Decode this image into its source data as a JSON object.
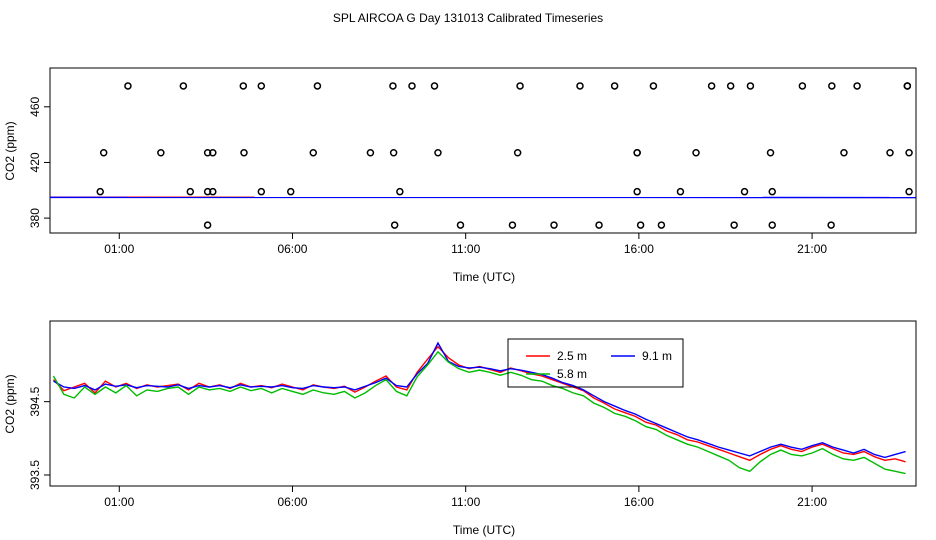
{
  "title": "SPL AIRCOA G  Day 131013  Calibrated Timeseries",
  "chart_data": [
    {
      "type": "scatter",
      "xlabel": "Time (UTC)",
      "ylabel": "CO2 (ppm)",
      "xlim_hours": [
        -1.0,
        24.0
      ],
      "ylim": [
        369.3,
        487.9
      ],
      "x_ticks": [
        {
          "label": "01:00",
          "hour": 1
        },
        {
          "label": "06:00",
          "hour": 6
        },
        {
          "label": "11:00",
          "hour": 11
        },
        {
          "label": "16:00",
          "hour": 16
        },
        {
          "label": "21:00",
          "hour": 21
        }
      ],
      "y_ticks": [
        380,
        420,
        460
      ],
      "series": [
        {
          "kind": "points",
          "color": "#000000",
          "x_hours": [
            1.25,
            2.85,
            4.58,
            5.1,
            6.72,
            8.9,
            9.45,
            10.1,
            12.57,
            14.3,
            15.3,
            16.42,
            18.1,
            18.65,
            19.22,
            20.72,
            21.57,
            22.3,
            23.75,
            23.75,
            0.55,
            2.2,
            3.55,
            3.7,
            3.7,
            5.1,
            6.6,
            8.92,
            9.1,
            10.2,
            12.5,
            15.95,
            15.95,
            15.95,
            17.2,
            17.65,
            19.05,
            19.8,
            19.85,
            21.92,
            23.25,
            23.8,
            23.8,
            0.45,
            3.05,
            3.55,
            3.55,
            4.6,
            5.95,
            8.25,
            8.95,
            10.85,
            12.35,
            13.55,
            14.85,
            16.05,
            16.65,
            18.75,
            19.85,
            21.55
          ],
          "y": [
            475,
            475,
            475,
            475,
            475,
            475,
            475,
            475,
            475,
            475,
            475,
            475,
            475,
            475,
            475,
            475,
            475,
            475,
            475,
            475,
            427,
            427,
            427,
            427,
            399,
            399,
            427,
            427,
            399,
            427,
            427,
            427,
            399,
            427,
            399,
            427,
            399,
            427,
            399,
            427,
            427,
            427,
            399,
            399,
            399,
            375,
            399,
            427,
            399,
            427,
            375,
            375,
            375,
            375,
            375,
            375,
            375,
            375,
            375,
            375
          ]
        },
        {
          "kind": "line",
          "color": "#00bb00",
          "x_hours": [
            -1.0,
            24.0
          ],
          "y": [
            395.0,
            394.9
          ]
        },
        {
          "kind": "line",
          "color": "#ff0000",
          "x_hours": [
            -1.0,
            24.0
          ],
          "y": [
            395.0,
            394.9
          ]
        },
        {
          "kind": "line",
          "color": "#0000ff",
          "x_hours": [
            -1.0,
            24.0
          ],
          "y": [
            394.9,
            394.8
          ]
        }
      ]
    },
    {
      "type": "line",
      "xlabel": "Time (UTC)",
      "ylabel": "CO2 (ppm)",
      "xlim_hours": [
        -1.0,
        24.0
      ],
      "ylim": [
        393.35,
        395.6
      ],
      "x_ticks": [
        {
          "label": "01:00",
          "hour": 1
        },
        {
          "label": "06:00",
          "hour": 6
        },
        {
          "label": "11:00",
          "hour": 11
        },
        {
          "label": "16:00",
          "hour": 16
        },
        {
          "label": "21:00",
          "hour": 21
        }
      ],
      "y_ticks": [
        {
          "label": "393.5",
          "value": 393.5
        },
        {
          "label": "394.5",
          "value": 394.5
        }
      ],
      "legend": {
        "position": "center-top",
        "entries": [
          {
            "name": "2.5 m",
            "color": "#ff0000"
          },
          {
            "name": "9.1 m",
            "color": "#0000ff"
          },
          {
            "name": "5.8 m",
            "color": "#00bb00"
          }
        ]
      },
      "x_hours": [
        -0.9,
        -0.6,
        -0.3,
        0.0,
        0.3,
        0.6,
        0.9,
        1.2,
        1.5,
        1.8,
        2.1,
        2.4,
        2.7,
        3.0,
        3.3,
        3.6,
        3.9,
        4.2,
        4.5,
        4.8,
        5.1,
        5.4,
        5.7,
        6.0,
        6.3,
        6.6,
        6.9,
        7.2,
        7.5,
        7.8,
        8.1,
        8.4,
        8.7,
        9.0,
        9.3,
        9.6,
        9.9,
        10.2,
        10.5,
        10.8,
        11.1,
        11.4,
        11.7,
        12.0,
        12.3,
        12.6,
        12.9,
        13.2,
        13.5,
        13.8,
        14.1,
        14.4,
        14.7,
        15.0,
        15.3,
        15.6,
        15.9,
        16.2,
        16.5,
        16.8,
        17.1,
        17.4,
        17.7,
        18.0,
        18.3,
        18.6,
        18.9,
        19.2,
        19.5,
        19.8,
        20.1,
        20.4,
        20.7,
        21.0,
        21.3,
        21.6,
        21.9,
        22.2,
        22.5,
        22.8,
        23.1,
        23.4,
        23.7
      ],
      "series": [
        {
          "name": "2.5 m",
          "color": "#ff0000",
          "values": [
            394.8,
            394.65,
            394.7,
            394.75,
            394.62,
            394.78,
            394.7,
            394.75,
            394.68,
            394.73,
            394.7,
            394.72,
            394.74,
            394.66,
            394.75,
            394.7,
            394.73,
            394.68,
            394.75,
            394.7,
            394.72,
            394.69,
            394.74,
            394.7,
            394.66,
            394.73,
            394.7,
            394.68,
            394.71,
            394.63,
            394.7,
            394.78,
            394.85,
            394.7,
            394.66,
            394.9,
            395.08,
            395.25,
            395.1,
            395.0,
            394.95,
            394.98,
            394.94,
            394.9,
            394.96,
            394.92,
            394.88,
            394.85,
            394.8,
            394.75,
            394.7,
            394.65,
            394.55,
            394.48,
            394.4,
            394.35,
            394.3,
            394.22,
            394.18,
            394.1,
            394.05,
            393.98,
            393.95,
            393.9,
            393.85,
            393.8,
            393.75,
            393.7,
            393.78,
            393.85,
            393.9,
            393.85,
            393.82,
            393.88,
            393.92,
            393.86,
            393.8,
            393.78,
            393.82,
            393.75,
            393.7,
            393.72,
            393.68
          ]
        },
        {
          "name": "9.1 m",
          "color": "#0000ff",
          "values": [
            394.78,
            394.7,
            394.68,
            394.72,
            394.66,
            394.74,
            394.71,
            394.73,
            394.69,
            394.72,
            394.71,
            394.7,
            394.73,
            394.68,
            394.72,
            394.7,
            394.72,
            394.69,
            394.73,
            394.7,
            394.71,
            394.7,
            394.72,
            394.69,
            394.68,
            394.72,
            394.7,
            394.69,
            394.7,
            394.66,
            394.71,
            394.76,
            394.82,
            394.72,
            394.7,
            394.88,
            395.02,
            395.3,
            395.05,
            394.98,
            394.96,
            394.97,
            394.95,
            394.92,
            394.95,
            394.93,
            394.9,
            394.87,
            394.82,
            394.76,
            394.72,
            394.66,
            394.58,
            394.5,
            394.44,
            394.38,
            394.33,
            394.26,
            394.2,
            394.14,
            394.08,
            394.02,
            393.98,
            393.93,
            393.88,
            393.84,
            393.8,
            393.76,
            393.82,
            393.88,
            393.92,
            393.88,
            393.85,
            393.9,
            393.94,
            393.88,
            393.84,
            393.8,
            393.85,
            393.78,
            393.74,
            393.78,
            393.82
          ]
        },
        {
          "name": "5.8 m",
          "color": "#00bb00",
          "values": [
            394.85,
            394.6,
            394.55,
            394.7,
            394.6,
            394.7,
            394.62,
            394.72,
            394.58,
            394.66,
            394.64,
            394.68,
            394.7,
            394.6,
            394.7,
            394.66,
            394.68,
            394.64,
            394.7,
            394.65,
            394.68,
            394.62,
            394.68,
            394.64,
            394.6,
            394.66,
            394.62,
            394.6,
            394.64,
            394.55,
            394.62,
            394.72,
            394.8,
            394.64,
            394.58,
            394.84,
            395.0,
            395.18,
            395.04,
            394.95,
            394.9,
            394.93,
            394.9,
            394.86,
            394.9,
            394.86,
            394.8,
            394.78,
            394.72,
            394.68,
            394.62,
            394.58,
            394.48,
            394.42,
            394.34,
            394.3,
            394.24,
            394.16,
            394.12,
            394.04,
            393.98,
            393.92,
            393.88,
            393.82,
            393.76,
            393.7,
            393.6,
            393.55,
            393.68,
            393.78,
            393.84,
            393.78,
            393.76,
            393.8,
            393.86,
            393.78,
            393.72,
            393.7,
            393.74,
            393.66,
            393.58,
            393.55,
            393.52
          ]
        }
      ]
    }
  ]
}
